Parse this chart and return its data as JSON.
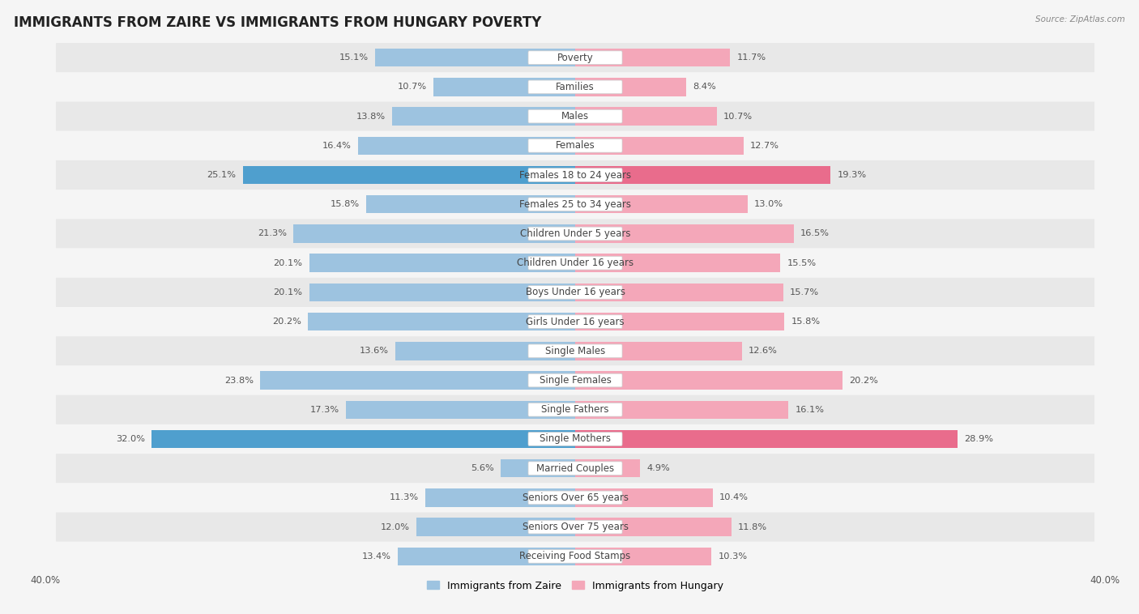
{
  "title": "IMMIGRANTS FROM ZAIRE VS IMMIGRANTS FROM HUNGARY POVERTY",
  "source": "Source: ZipAtlas.com",
  "categories": [
    "Poverty",
    "Families",
    "Males",
    "Females",
    "Females 18 to 24 years",
    "Females 25 to 34 years",
    "Children Under 5 years",
    "Children Under 16 years",
    "Boys Under 16 years",
    "Girls Under 16 years",
    "Single Males",
    "Single Females",
    "Single Fathers",
    "Single Mothers",
    "Married Couples",
    "Seniors Over 65 years",
    "Seniors Over 75 years",
    "Receiving Food Stamps"
  ],
  "zaire_values": [
    15.1,
    10.7,
    13.8,
    16.4,
    25.1,
    15.8,
    21.3,
    20.1,
    20.1,
    20.2,
    13.6,
    23.8,
    17.3,
    32.0,
    5.6,
    11.3,
    12.0,
    13.4
  ],
  "hungary_values": [
    11.7,
    8.4,
    10.7,
    12.7,
    19.3,
    13.0,
    16.5,
    15.5,
    15.7,
    15.8,
    12.6,
    20.2,
    16.1,
    28.9,
    4.9,
    10.4,
    11.8,
    10.3
  ],
  "zaire_color": "#9dc3e0",
  "hungary_color": "#f4a7b9",
  "zaire_highlight_color": "#4f9fce",
  "hungary_highlight_color": "#e96c8c",
  "highlight_indices": [
    4,
    13
  ],
  "xlim": 40.0,
  "background_color": "#f5f5f5",
  "row_even_color": "#e8e8e8",
  "row_odd_color": "#f5f5f5",
  "legend_zaire": "Immigrants from Zaire",
  "legend_hungary": "Immigrants from Hungary",
  "bar_height": 0.62,
  "title_fontsize": 12,
  "label_fontsize": 8.5,
  "value_fontsize": 8.2,
  "tick_fontsize": 8.5
}
